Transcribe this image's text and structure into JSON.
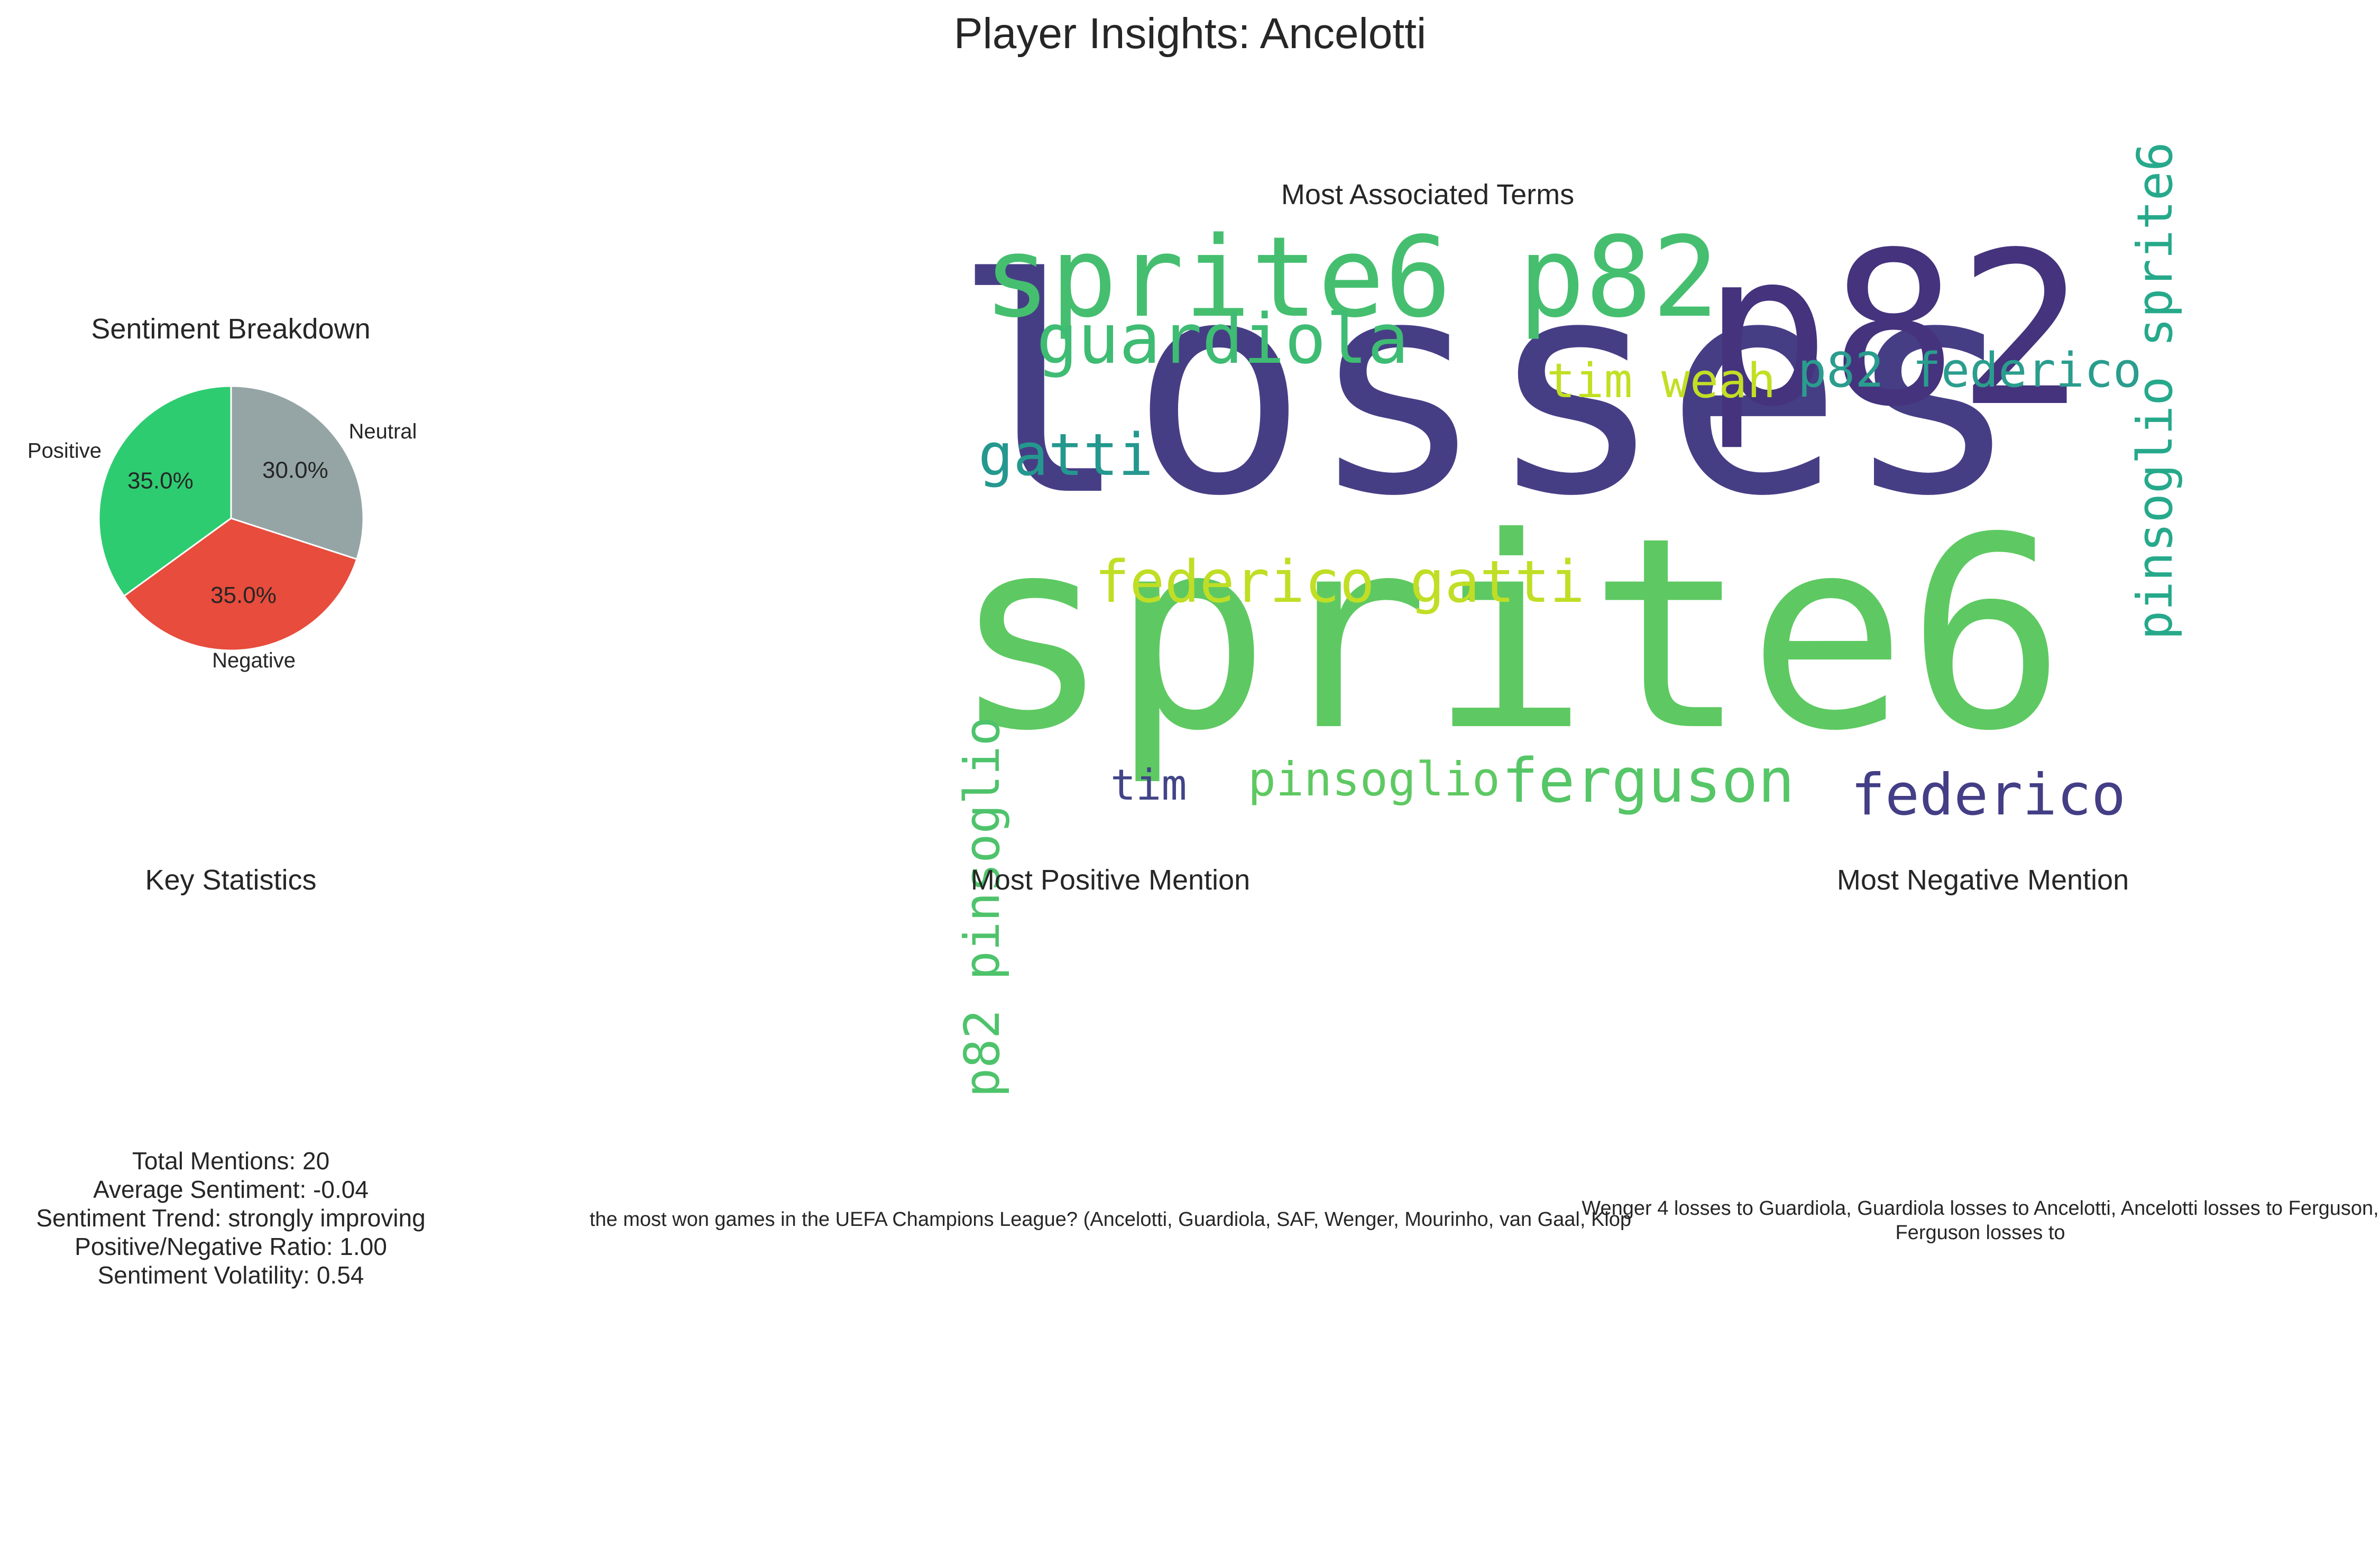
{
  "figure_title": "Player Insights: Ancelotti",
  "sentiment_breakdown": {
    "title": "Sentiment Breakdown"
  },
  "word_cloud": {
    "title": "Most Associated Terms",
    "words": [
      {
        "text": "losses",
        "color": "#463e85"
      },
      {
        "text": "sprite6",
        "color": "#5ec962"
      },
      {
        "text": "p82",
        "color": "#45337d"
      },
      {
        "text": "sprite6 p82",
        "color": "#45bf6f"
      },
      {
        "text": "guardiola",
        "color": "#3fbc73"
      },
      {
        "text": "tim weah",
        "color": "#c2df23"
      },
      {
        "text": "p82 federico",
        "color": "#2a9d8e"
      },
      {
        "text": "pinsoglio sprite6",
        "color": "#26a98b"
      },
      {
        "text": "gatti",
        "color": "#24988e"
      },
      {
        "text": "federico gatti",
        "color": "#c0de25"
      },
      {
        "text": "p82 pinsoglio",
        "color": "#4ec36b"
      },
      {
        "text": "tim",
        "color": "#414487"
      },
      {
        "text": "pinsoglio",
        "color": "#5ec962"
      },
      {
        "text": "ferguson",
        "color": "#56c667"
      },
      {
        "text": "federico",
        "color": "#433e85"
      }
    ]
  },
  "key_statistics": {
    "title": "Key Statistics",
    "lines": [
      "Total Mentions: 20",
      "Average Sentiment: -0.04",
      "Sentiment Trend: strongly improving",
      "Positive/Negative Ratio: 1.00",
      "Sentiment Volatility: 0.54"
    ]
  },
  "most_positive_mention": {
    "title": "Most Positive Mention",
    "text": "the most won games in the UEFA Champions League? (Ancelotti, Guardiola, SAF, Wenger, Mourinho, van Gaal, Klop"
  },
  "most_negative_mention": {
    "title": "Most Negative Mention",
    "text": "Wenger 4 losses to Guardiola, Guardiola losses to Ancelotti, Ancelotti losses to Ferguson, Ferguson losses to"
  },
  "chart_data": {
    "type": "pie",
    "title": "Sentiment Breakdown",
    "categories": [
      "Positive",
      "Negative",
      "Neutral"
    ],
    "values": [
      35.0,
      35.0,
      30.0
    ],
    "value_labels": [
      "35.0%",
      "35.0%",
      "30.0%"
    ],
    "colors": [
      "#2ecc71",
      "#e74c3c",
      "#95a5a6"
    ],
    "start_angle": 90
  }
}
